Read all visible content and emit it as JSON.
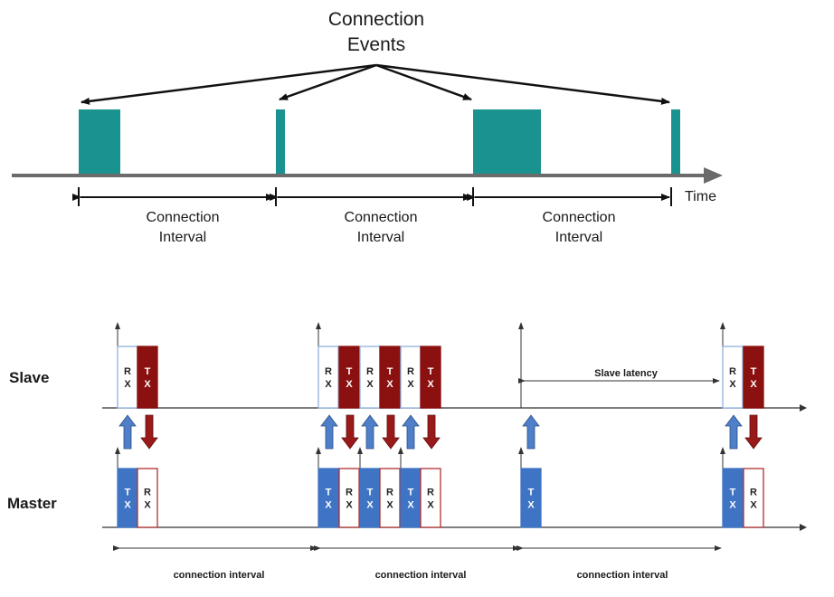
{
  "top": {
    "title_line1": "Connection",
    "title_line2": "Events",
    "time_label": "Time",
    "intervals": [
      {
        "line1": "Connection",
        "line2": "Interval"
      },
      {
        "line1": "Connection",
        "line2": "Interval"
      },
      {
        "line1": "Connection",
        "line2": "Interval"
      }
    ]
  },
  "bottom": {
    "slave_label": "Slave",
    "master_label": "Master",
    "slave_latency_label": "Slave latency",
    "rx_letters": [
      "R",
      "X"
    ],
    "tx_letters": [
      "T",
      "X"
    ],
    "intervals": [
      {
        "label": "connection interval"
      },
      {
        "label": "connection interval"
      },
      {
        "label": "connection interval"
      }
    ]
  },
  "colors": {
    "event_teal": "#1a9390",
    "axis_gray": "#6b6b6b",
    "tx_slave_dark_red": "#8b1010",
    "tx_master_blue": "#3f74c4",
    "rx_slave_border": "#8fb0de",
    "rx_master_border": "#b03030",
    "arrow_up_blue": "#4f7fc8",
    "arrow_down_red": "#9a1a1a"
  }
}
